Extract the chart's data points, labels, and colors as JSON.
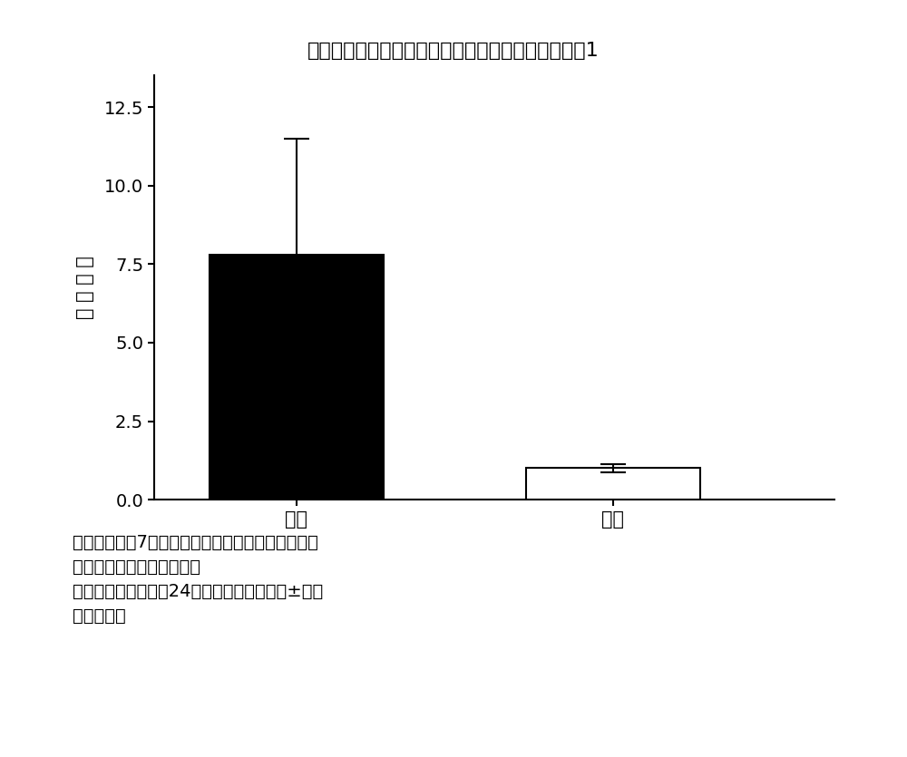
{
  "title": "在细针穿刺大鼠的脸部神经核中的生物体内影像化剂1",
  "ylabel": "相 对 强 度",
  "categories": [
    "同侧",
    "对侧"
  ],
  "values": [
    7.8,
    1.0
  ],
  "errors_plus": [
    3.7,
    0.12
  ],
  "errors_minus": [
    3.7,
    0.12
  ],
  "bar_colors": [
    "#000000",
    "#ffffff"
  ],
  "bar_edgecolors": [
    "#000000",
    "#000000"
  ],
  "ylim": [
    0.0,
    13.5
  ],
  "yticks": [
    0.0,
    2.5,
    5.0,
    7.5,
    10.0,
    12.5
  ],
  "annotation_lines": [
    "肽核酸之后第7天在大鼠的脸部神经核中的生物体内",
    "影像化第一结合的相对强度",
    "数据由从一只动物的24个的各个切片的平均±标准",
    "偏差来表示"
  ],
  "title_fontsize": 16,
  "ylabel_fontsize": 15,
  "tick_fontsize": 14,
  "xlabel_fontsize": 15,
  "annotation_fontsize": 14,
  "background_color": "#ffffff",
  "figure_width": 10.0,
  "figure_height": 8.35
}
